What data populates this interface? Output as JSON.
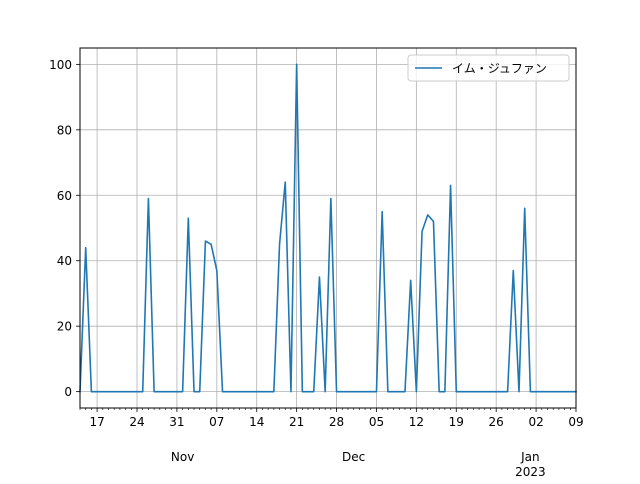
{
  "chart_data": {
    "type": "line",
    "title": "",
    "xlabel": "",
    "ylabel": "",
    "grid": true,
    "legend_position": "top-right",
    "xlim": [
      "2022-10-14",
      "2023-01-09"
    ],
    "ylim": [
      -5,
      105
    ],
    "yticks": [
      0,
      20,
      40,
      60,
      80,
      100
    ],
    "x_major_ticks": [
      {
        "date": "2022-10-17",
        "label": "17"
      },
      {
        "date": "2022-10-24",
        "label": "24"
      },
      {
        "date": "2022-10-31",
        "label": "31"
      },
      {
        "date": "2022-11-07",
        "label": "07"
      },
      {
        "date": "2022-11-14",
        "label": "14"
      },
      {
        "date": "2022-11-21",
        "label": "21"
      },
      {
        "date": "2022-11-28",
        "label": "28"
      },
      {
        "date": "2022-12-05",
        "label": "05"
      },
      {
        "date": "2022-12-12",
        "label": "12"
      },
      {
        "date": "2022-12-19",
        "label": "19"
      },
      {
        "date": "2022-12-26",
        "label": "26"
      },
      {
        "date": "2023-01-02",
        "label": "02"
      },
      {
        "date": "2023-01-09",
        "label": "09"
      }
    ],
    "x_month_labels": [
      {
        "date": "2022-11-01",
        "label": "Nov"
      },
      {
        "date": "2022-12-01",
        "label": "Dec"
      },
      {
        "date": "2023-01-01",
        "label": "Jan\n2023"
      }
    ],
    "series": [
      {
        "name": "イム・ジュファン",
        "color": "#1f77b4",
        "points": [
          [
            "2022-10-14",
            0
          ],
          [
            "2022-10-15",
            44
          ],
          [
            "2022-10-16",
            0
          ],
          [
            "2022-10-25",
            0
          ],
          [
            "2022-10-26",
            59
          ],
          [
            "2022-10-27",
            0
          ],
          [
            "2022-11-01",
            0
          ],
          [
            "2022-11-02",
            53
          ],
          [
            "2022-11-03",
            0
          ],
          [
            "2022-11-04",
            0
          ],
          [
            "2022-11-05",
            46
          ],
          [
            "2022-11-06",
            45
          ],
          [
            "2022-11-07",
            37
          ],
          [
            "2022-11-08",
            0
          ],
          [
            "2022-11-17",
            0
          ],
          [
            "2022-11-18",
            45
          ],
          [
            "2022-11-19",
            64
          ],
          [
            "2022-11-20",
            0
          ],
          [
            "2022-11-21",
            100
          ],
          [
            "2022-11-22",
            0
          ],
          [
            "2022-11-24",
            0
          ],
          [
            "2022-11-25",
            35
          ],
          [
            "2022-11-26",
            0
          ],
          [
            "2022-11-27",
            59
          ],
          [
            "2022-11-28",
            0
          ],
          [
            "2022-12-05",
            0
          ],
          [
            "2022-12-06",
            55
          ],
          [
            "2022-12-07",
            0
          ],
          [
            "2022-12-10",
            0
          ],
          [
            "2022-12-11",
            34
          ],
          [
            "2022-12-12",
            0
          ],
          [
            "2022-12-13",
            49
          ],
          [
            "2022-12-14",
            54
          ],
          [
            "2022-12-15",
            52
          ],
          [
            "2022-12-16",
            0
          ],
          [
            "2022-12-17",
            0
          ],
          [
            "2022-12-18",
            63
          ],
          [
            "2022-12-19",
            0
          ],
          [
            "2022-12-28",
            0
          ],
          [
            "2022-12-29",
            37
          ],
          [
            "2022-12-30",
            0
          ],
          [
            "2022-12-31",
            56
          ],
          [
            "2023-01-01",
            0
          ],
          [
            "2023-01-09",
            0
          ]
        ]
      }
    ]
  }
}
